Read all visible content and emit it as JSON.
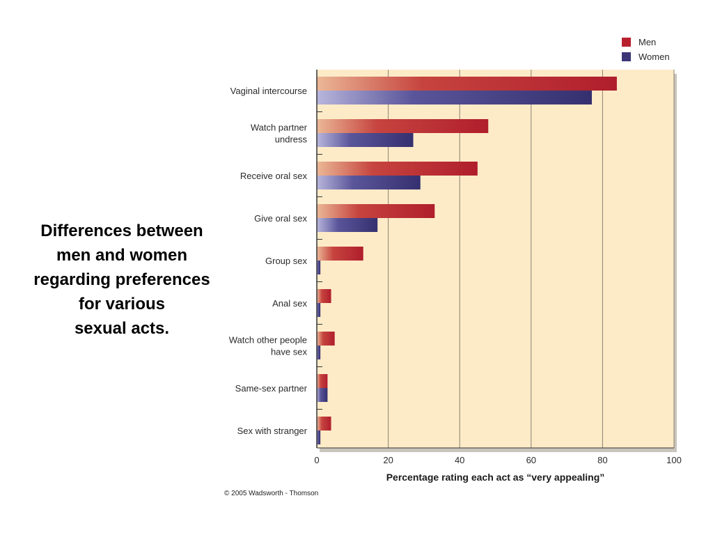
{
  "caption": {
    "lines": [
      "Differences between",
      "men and women",
      "regarding preferences",
      "for various",
      "sexual acts."
    ]
  },
  "copyright": "© 2005 Wadsworth - Thomson",
  "colors": {
    "men": "#b8202e",
    "women": "#3b3577",
    "plot_bg": "#fdebc8",
    "grid": "#8a8170"
  },
  "chart_data": {
    "type": "bar",
    "orientation": "horizontal",
    "categories": [
      [
        "Vaginal intercourse"
      ],
      [
        "Watch partner",
        "undress"
      ],
      [
        "Receive oral sex"
      ],
      [
        "Give oral sex"
      ],
      [
        "Group sex"
      ],
      [
        "Anal sex"
      ],
      [
        "Watch other people",
        "have sex"
      ],
      [
        "Same-sex partner"
      ],
      [
        "Sex with stranger"
      ]
    ],
    "series": [
      {
        "name": "Men",
        "values": [
          84,
          48,
          45,
          33,
          13,
          4,
          5,
          3,
          4
        ]
      },
      {
        "name": "Women",
        "values": [
          77,
          27,
          29,
          17,
          1,
          1,
          1,
          3,
          1
        ]
      }
    ],
    "xlabel": "Percentage rating each act as “very appealing”",
    "xlim": [
      0,
      100
    ],
    "xticks": [
      0,
      20,
      40,
      60,
      80,
      100
    ],
    "grid": true,
    "legend_position": "top-right"
  }
}
